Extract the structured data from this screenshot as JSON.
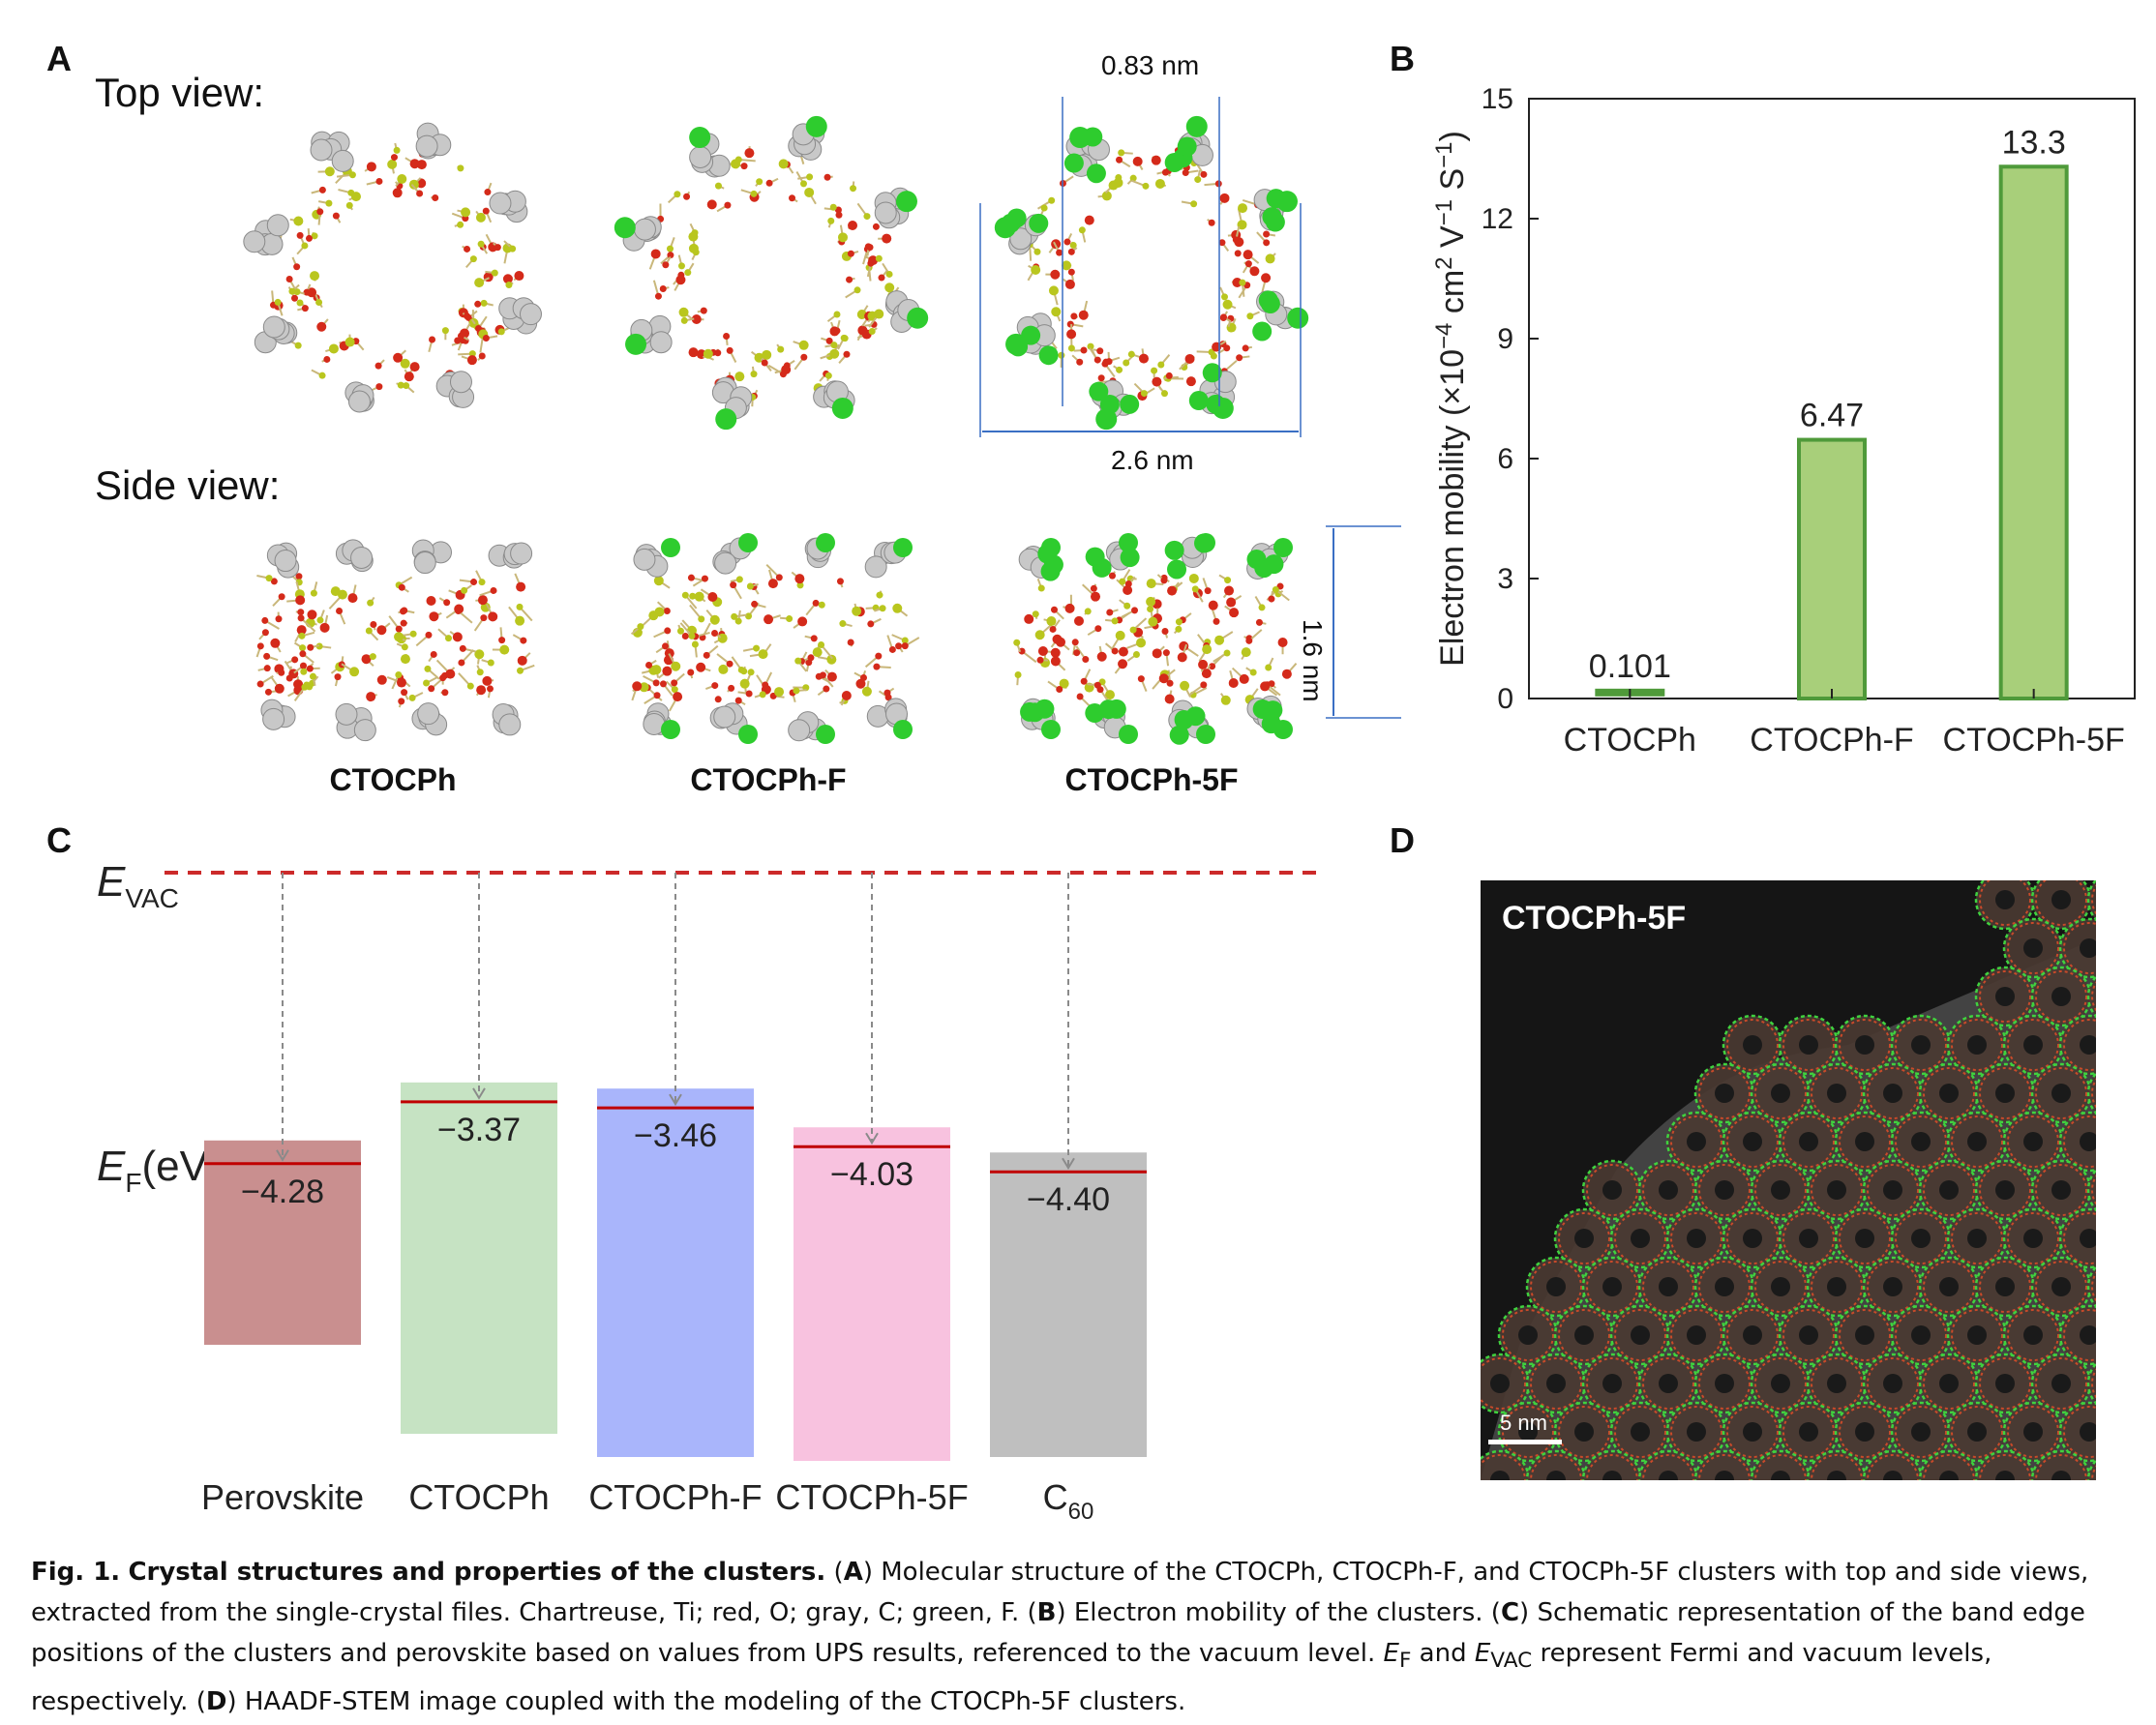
{
  "panels": {
    "a": {
      "letter": "A",
      "top_view": "Top view:",
      "side_view": "Side view:",
      "clusters": [
        "CTOCPh",
        "CTOCPh-F",
        "CTOCPh-5F"
      ],
      "dims": {
        "inner": "0.83 nm",
        "outer": "2.6 nm",
        "height": "1.6 nm"
      }
    },
    "b": {
      "letter": "B"
    },
    "c": {
      "letter": "C",
      "evac_label_main": "E",
      "evac_label_sub": "VAC",
      "ef_label_main": "E",
      "ef_label_sub": "F",
      "ef_label_unit": "(eV)"
    },
    "d": {
      "letter": "D",
      "image_label": "CTOCPh-5F",
      "scale_bar": "5 nm"
    }
  },
  "chart_data": [
    {
      "type": "bar",
      "panel": "B",
      "categories": [
        "CTOCPh",
        "CTOCPh-F",
        "CTOCPh-5F"
      ],
      "values": [
        0.101,
        6.47,
        13.3
      ],
      "value_labels": [
        "0.101",
        "6.47",
        "13.3"
      ],
      "ylabel": "Electron mobility (×10⁻⁴ cm² V⁻¹ S⁻¹)",
      "ylabel_parts": {
        "pre": "Electron mobility (×10",
        "sup1": "−4",
        "mid1": " cm",
        "sup2": "2",
        "mid2": " V",
        "sup3": "−1",
        "mid3": " S",
        "sup4": "−1",
        "post": ")"
      },
      "ylim": [
        0,
        15
      ],
      "yticks": [
        0,
        3,
        6,
        9,
        12,
        15
      ],
      "colors": {
        "fill": "#a8cf7a",
        "edge": "#4f9a3a",
        "small_fill": "#2e8b2e"
      }
    },
    {
      "type": "bar",
      "panel": "C",
      "categories": [
        "Perovskite",
        "CTOCPh",
        "CTOCPh-F",
        "CTOCPh-5F",
        "C60"
      ],
      "category_labels": [
        {
          "main": "Perovskite",
          "sub": ""
        },
        {
          "main": "CTOCPh",
          "sub": ""
        },
        {
          "main": "CTOCPh-F",
          "sub": ""
        },
        {
          "main": "CTOCPh-5F",
          "sub": ""
        },
        {
          "main": "C",
          "sub": "60"
        }
      ],
      "fermi_levels": [
        -4.28,
        -3.37,
        -3.46,
        -4.03,
        -4.4
      ],
      "value_labels": [
        "−4.28",
        "−3.37",
        "−3.46",
        "−4.03",
        "−4.40"
      ],
      "colors": [
        "#c98f8f",
        "#c6e3c3",
        "#a9b5fb",
        "#f8c2df",
        "#bfbfbf"
      ],
      "line_color": "#c00000",
      "vacuum_line_color": "#cc2a2a"
    }
  ],
  "caption": {
    "fig": "Fig. 1.",
    "title": "Crystal structures and properties of the clusters.",
    "p1a": " (",
    "A": "A",
    "p1b": ") Molecular structure of the CTOCPh, CTOCPh-F, and CTOCPh-5F clusters with top and side views, extracted from the single-crystal files. Chartreuse, Ti; red, O; gray, C; green, F. (",
    "B": "B",
    "p2": ") Electron mobility of the clusters. (",
    "C": "C",
    "p3": ") Schematic representation of the band edge positions of the clusters and perovskite based on values from UPS results, referenced to the vacuum level. ",
    "ef_main": "E",
    "ef_sub": "F",
    "and": " and ",
    "evac_main": "E",
    "evac_sub": "VAC",
    "p4": " represent Fermi and vacuum levels, respectively. (",
    "D": "D",
    "p5": ") HAADF-STEM image coupled with the modeling of the CTOCPh-5F clusters."
  }
}
